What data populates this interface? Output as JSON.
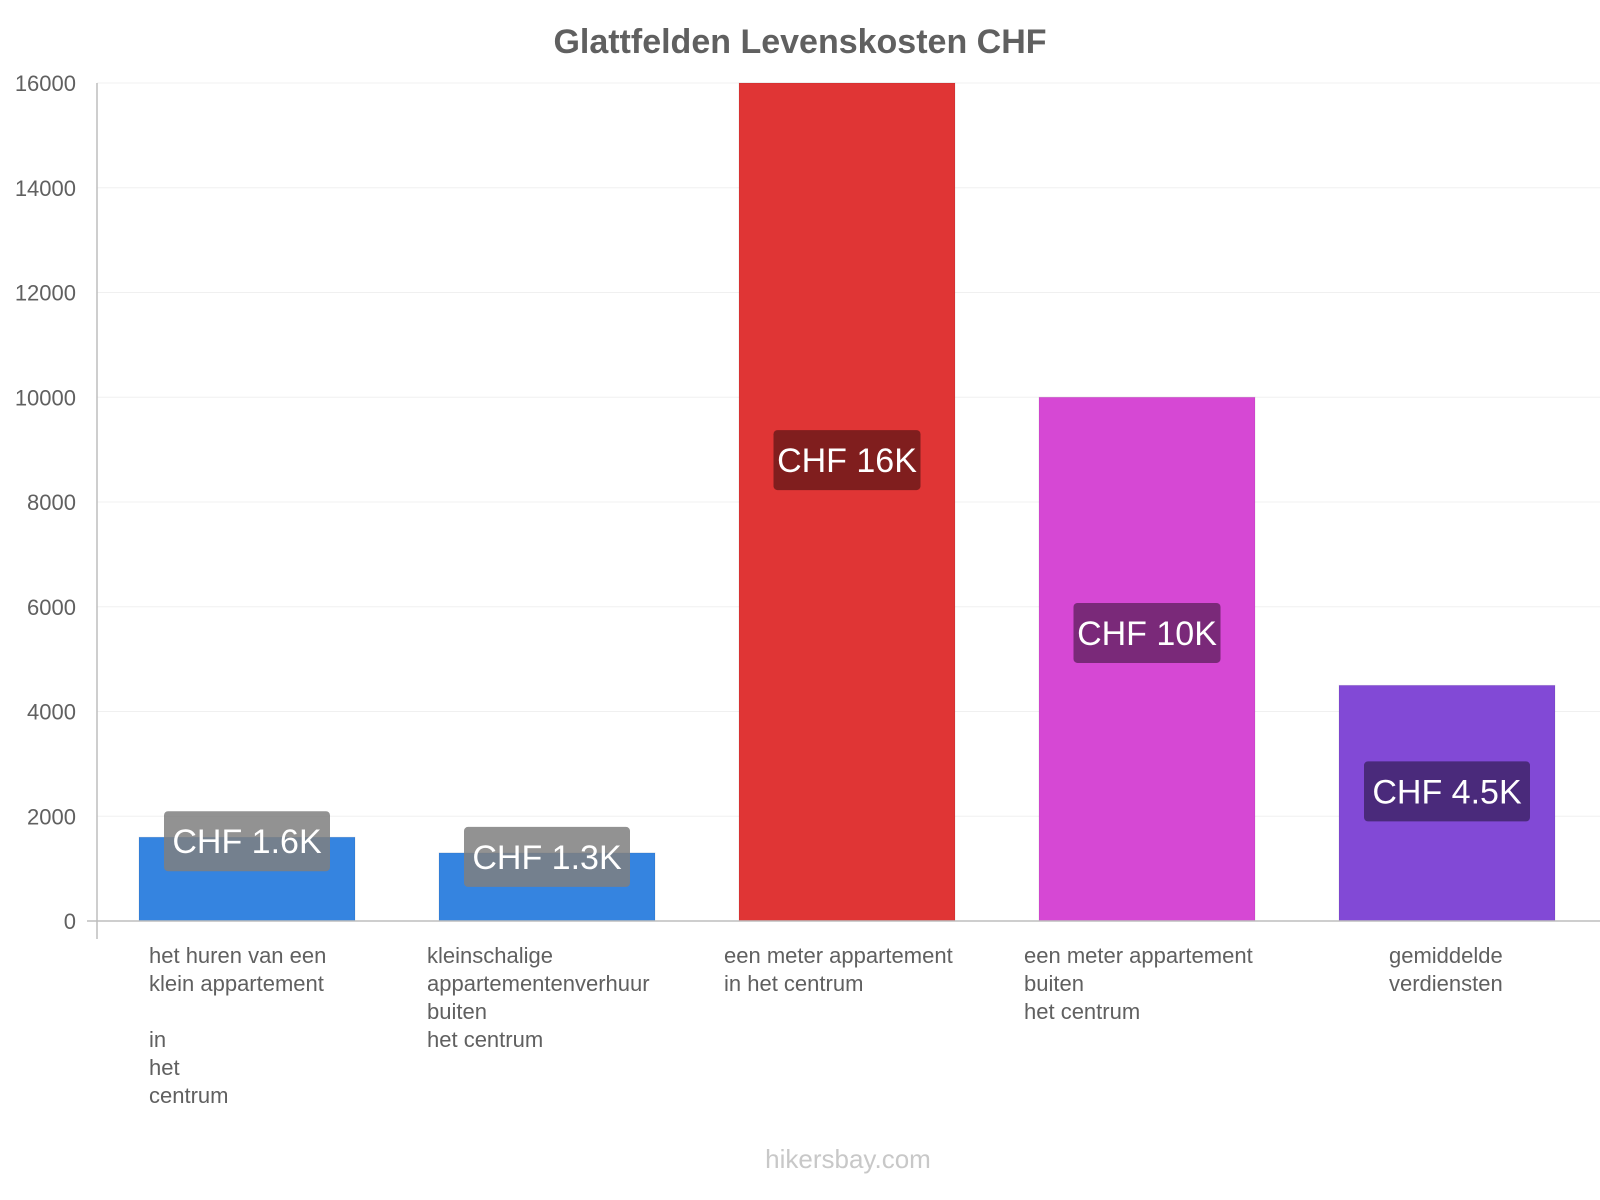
{
  "footer": "hikersbay.com",
  "chart_data": {
    "type": "bar",
    "title": "Glattfelden Levenskosten CHF",
    "ylim": [
      0,
      16000
    ],
    "yticks": [
      "0",
      "2000",
      "4000",
      "6000",
      "8000",
      "10000",
      "12000",
      "14000",
      "16000"
    ],
    "grid": true,
    "legend": "none",
    "categories": [
      [
        "het huren van een",
        "klein appartement",
        "",
        "in",
        "het",
        "centrum"
      ],
      [
        "kleinschalige",
        "appartementenverhuur",
        "buiten",
        "het centrum"
      ],
      [
        "een meter appartement",
        "in het centrum"
      ],
      [
        "een meter appartement",
        "buiten",
        "het centrum"
      ],
      [
        "gemiddelde",
        "verdiensten"
      ]
    ],
    "values": [
      1600,
      1300,
      16000,
      10000,
      4500
    ],
    "data_labels": [
      "CHF 1.6K",
      "CHF 1.3K",
      "CHF 16K",
      "CHF 10K",
      "CHF 4.5K"
    ],
    "colors": [
      "#3584e0",
      "#3584e0",
      "#e03535",
      "#d648d4",
      "#8249d6"
    ],
    "label_bg_colors": [
      "#7f7f7f",
      "#7f7f7f",
      "#6e1a1a",
      "#6a2468",
      "#41246b"
    ]
  }
}
